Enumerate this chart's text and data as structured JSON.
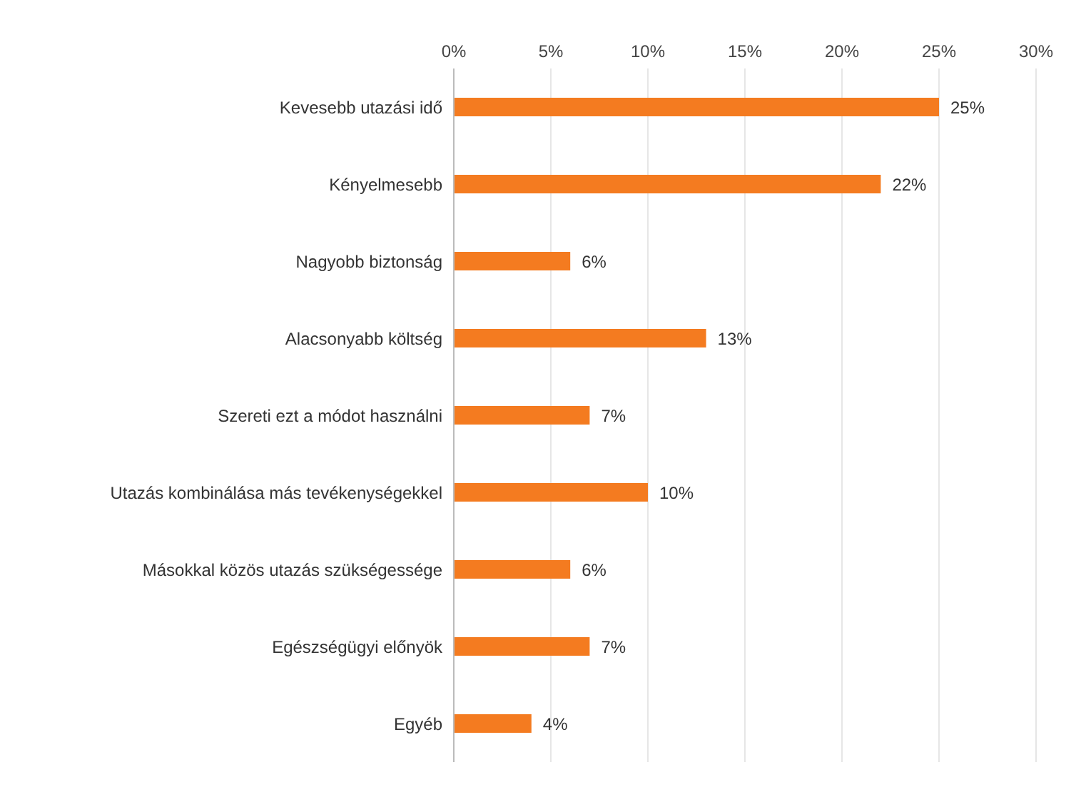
{
  "chart_data": {
    "type": "bar",
    "orientation": "horizontal",
    "categories": [
      "Kevesebb utazási idő",
      "Kényelmesebb",
      "Nagyobb biztonság",
      "Alacsonyabb költség",
      "Szereti ezt a módot használni",
      "Utazás kombinálása más tevékenységekkel",
      "Másokkal közös utazás szükségessége",
      "Egészségügyi előnyök",
      "Egyéb"
    ],
    "values": [
      25,
      22,
      6,
      13,
      7,
      10,
      6,
      7,
      4
    ],
    "value_labels": [
      "25%",
      "22%",
      "6%",
      "13%",
      "7%",
      "10%",
      "6%",
      "7%",
      "4%"
    ],
    "color": "#f47b20",
    "xlim": [
      0,
      30
    ],
    "xticks": [
      {
        "value": 0,
        "label": "0%"
      },
      {
        "value": 5,
        "label": "5%"
      },
      {
        "value": 10,
        "label": "10%"
      },
      {
        "value": 15,
        "label": "15%"
      },
      {
        "value": 20,
        "label": "20%"
      },
      {
        "value": 25,
        "label": "25%"
      },
      {
        "value": 30,
        "label": "30%"
      }
    ],
    "grid": "x"
  }
}
